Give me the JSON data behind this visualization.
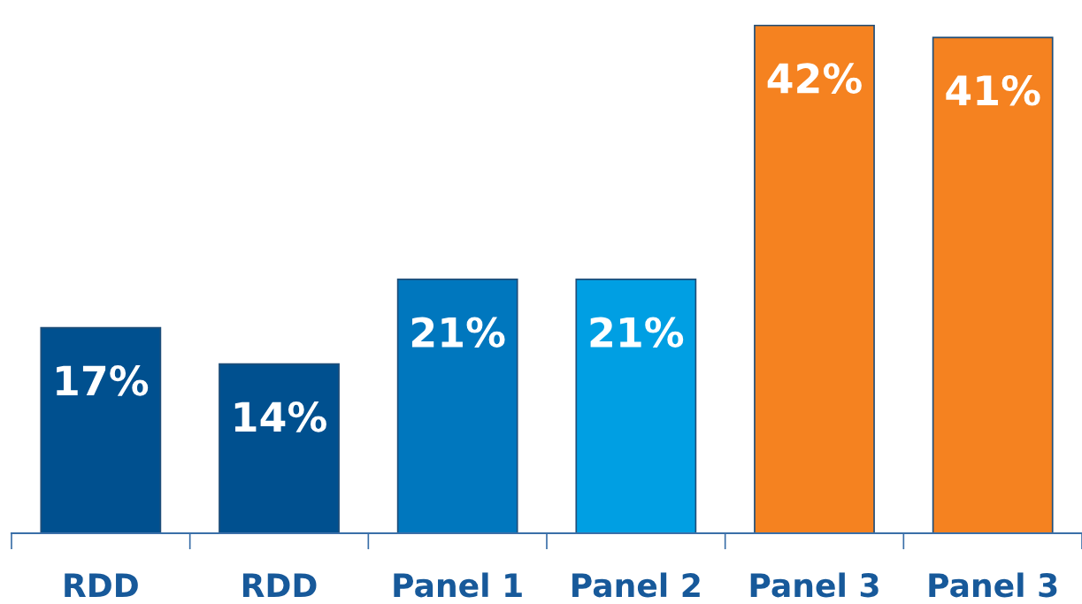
{
  "chart_data": {
    "type": "bar",
    "categories": [
      "RDD",
      "RDD",
      "Panel 1",
      "Panel 2",
      "Panel 3",
      "Panel 3"
    ],
    "values": [
      17,
      14,
      21,
      21,
      42,
      41
    ],
    "colors": [
      "#00508f",
      "#00508f",
      "#0077be",
      "#009fe3",
      "#f58220",
      "#f58220"
    ],
    "value_labels": [
      "17%",
      "14%",
      "21%",
      "21%",
      "42%",
      "41%"
    ],
    "tick_labels": "x",
    "grid": false,
    "legend": false
  }
}
